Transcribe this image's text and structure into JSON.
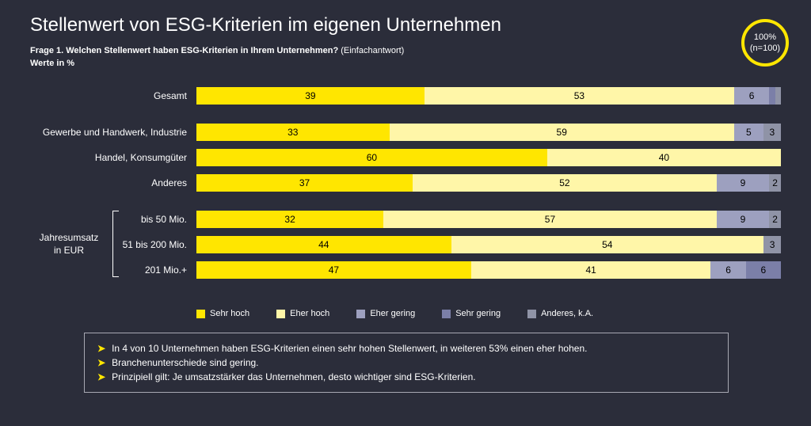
{
  "colors": {
    "bg": "#2b2d3a",
    "accent": "#ffe600",
    "series": {
      "sehr_hoch": "#ffe600",
      "eher_hoch": "#fff6a8",
      "eher_gering": "#9da0bf",
      "sehr_gering": "#7b7fa8",
      "anderes": "#8f93a6"
    },
    "text_on_bar": "#000000",
    "text": "#ffffff",
    "border": "#a7a8b3"
  },
  "title": "Stellenwert von ESG-Kriterien im eigenen Unternehmen",
  "question": "Frage 1. Welchen Stellenwert haben ESG-Kriterien in Ihrem Unternehmen?",
  "question_note": "(Einfachantwort)",
  "values_in": "Werte in %",
  "badge": {
    "line1": "100%",
    "line2": "(n=100)"
  },
  "legend": [
    {
      "key": "sehr_hoch",
      "label": "Sehr hoch"
    },
    {
      "key": "eher_hoch",
      "label": "Eher hoch"
    },
    {
      "key": "eher_gering",
      "label": "Eher gering"
    },
    {
      "key": "sehr_gering",
      "label": "Sehr gering"
    },
    {
      "key": "anderes",
      "label": "Anderes, k.A."
    }
  ],
  "side_label": "Jahresumsatz in EUR",
  "label_threshold": 2,
  "groups": [
    {
      "rows": [
        {
          "label": "Gesamt",
          "segments": [
            {
              "key": "sehr_hoch",
              "value": 39
            },
            {
              "key": "eher_hoch",
              "value": 53
            },
            {
              "key": "eher_gering",
              "value": 6
            },
            {
              "key": "sehr_gering",
              "value": 1
            },
            {
              "key": "anderes",
              "value": 1
            }
          ]
        }
      ]
    },
    {
      "rows": [
        {
          "label": "Gewerbe und Handwerk, Industrie",
          "segments": [
            {
              "key": "sehr_hoch",
              "value": 33
            },
            {
              "key": "eher_hoch",
              "value": 59
            },
            {
              "key": "eher_gering",
              "value": 5
            },
            {
              "key": "anderes",
              "value": 3
            }
          ]
        },
        {
          "label": "Handel, Konsumgüter",
          "segments": [
            {
              "key": "sehr_hoch",
              "value": 60
            },
            {
              "key": "eher_hoch",
              "value": 40
            }
          ]
        },
        {
          "label": "Anderes",
          "segments": [
            {
              "key": "sehr_hoch",
              "value": 37
            },
            {
              "key": "eher_hoch",
              "value": 52
            },
            {
              "key": "eher_gering",
              "value": 9
            },
            {
              "key": "anderes",
              "value": 2
            }
          ]
        }
      ]
    },
    {
      "bracket": true,
      "rows": [
        {
          "label": "bis 50 Mio.",
          "segments": [
            {
              "key": "sehr_hoch",
              "value": 32
            },
            {
              "key": "eher_hoch",
              "value": 57
            },
            {
              "key": "eher_gering",
              "value": 9
            },
            {
              "key": "anderes",
              "value": 2
            }
          ]
        },
        {
          "label": "51 bis 200 Mio.",
          "segments": [
            {
              "key": "sehr_hoch",
              "value": 44
            },
            {
              "key": "eher_hoch",
              "value": 54
            },
            {
              "key": "anderes",
              "value": 3
            }
          ]
        },
        {
          "label": "201 Mio.+",
          "segments": [
            {
              "key": "sehr_hoch",
              "value": 47
            },
            {
              "key": "eher_hoch",
              "value": 41
            },
            {
              "key": "eher_gering",
              "value": 6
            },
            {
              "key": "sehr_gering",
              "value": 6
            }
          ]
        }
      ]
    }
  ],
  "footer": [
    "In 4 von 10 Unternehmen haben ESG-Kriterien einen sehr hohen Stellenwert, in weiteren 53% einen eher hohen.",
    "Branchenunterschiede sind gering.",
    "Prinzipiell gilt: Je umsatzstärker das Unternehmen, desto wichtiger sind ESG-Kriterien."
  ]
}
